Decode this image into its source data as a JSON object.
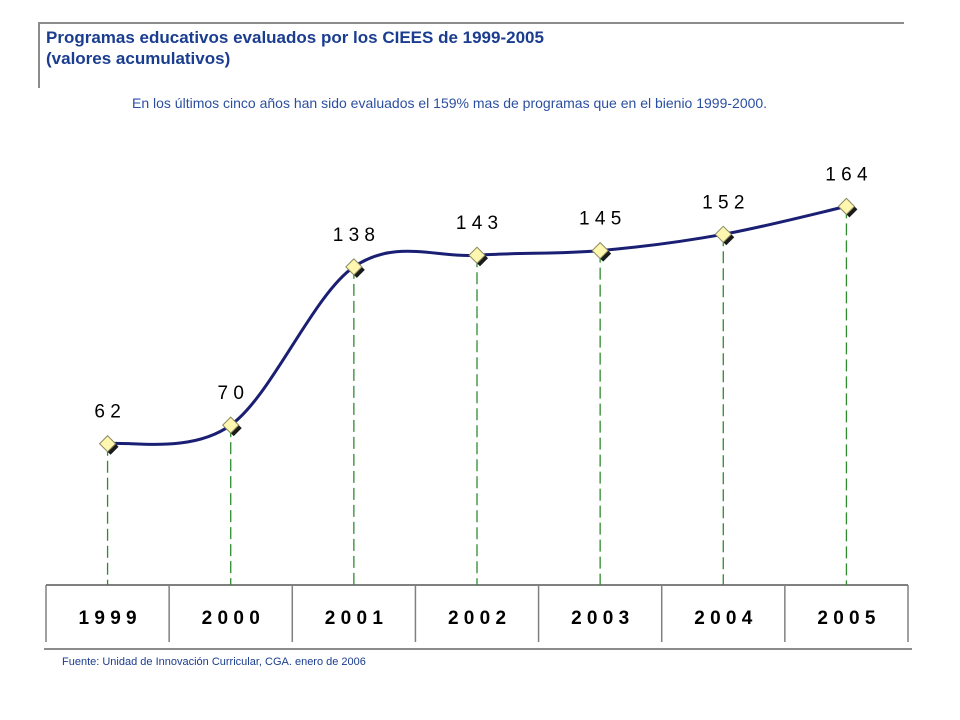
{
  "header": {
    "title_line1": "Programas educativos evaluados por los CIEES de 1999-2005",
    "title_line2": "(valores acumulativos)",
    "subtitle": "En los últimos cinco años han sido evaluados el 159% mas de programas que en el bienio 1999-2000."
  },
  "footer": {
    "source": "Fuente: Unidad de Innovación Curricular, CGA. enero de 2006"
  },
  "colors": {
    "line": "#1a1f73",
    "marker_fill": "#fff7b0",
    "marker_shadow": "#1a1a1a",
    "drop_line": "#2e8b2e",
    "title": "#1a3d8f"
  },
  "chart_data": {
    "type": "line",
    "categories": [
      "1999",
      "2000",
      "2001",
      "2002",
      "2003",
      "2004",
      "2005"
    ],
    "values": [
      62,
      70,
      138,
      143,
      145,
      152,
      164
    ],
    "data_labels": [
      "6 2",
      "7 0",
      "1 3 8",
      "1 4 3",
      "1 4 5",
      "1 5 2",
      "1 6 4"
    ],
    "category_labels": [
      "1 9 9 9",
      "2 0 0 0",
      "2 0 0 1",
      "2 0 0 2",
      "2 0 0 3",
      "2 0 0 4",
      "2 0 0 5"
    ],
    "smooth": true,
    "markers": "diamond",
    "drop_lines": true,
    "grid": false,
    "legend": "none"
  }
}
